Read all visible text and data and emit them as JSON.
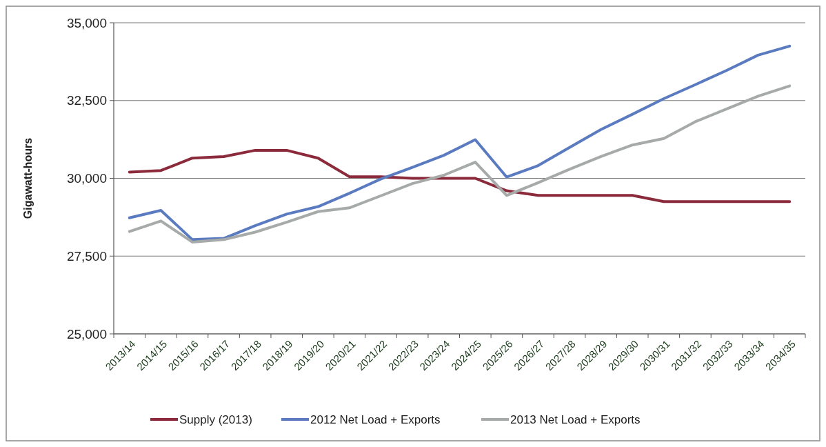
{
  "chart_data": {
    "type": "line",
    "ylabel": "Gigawatt-hours",
    "categories": [
      "2013/14",
      "2014/15",
      "2015/16",
      "2016/17",
      "2017/18",
      "2018/19",
      "2019/20",
      "2020/21",
      "2021/22",
      "2022/23",
      "2023/24",
      "2024/25",
      "2025/26",
      "2026/27",
      "2027/28",
      "2028/29",
      "2029/30",
      "2030/31",
      "2031/32",
      "2032/33",
      "2033/34",
      "2034/35"
    ],
    "series": [
      {
        "name": "Supply (2013)",
        "color": "#8b2a3a",
        "values": [
          30200,
          30250,
          30650,
          30700,
          30900,
          30900,
          30650,
          30050,
          30050,
          30000,
          30000,
          30000,
          29600,
          29450,
          29450,
          29450,
          29450,
          29250,
          29250,
          29250,
          29250,
          29250
        ]
      },
      {
        "name": "2012 Net Load + Exports",
        "color": "#5b7bc0",
        "values": [
          28730,
          28970,
          28030,
          28070,
          28480,
          28850,
          29090,
          29520,
          29980,
          30350,
          30740,
          31240,
          30040,
          30410,
          30990,
          31570,
          32060,
          32560,
          33010,
          33470,
          33960,
          34250
        ]
      },
      {
        "name": "2013 Net Load + Exports",
        "color": "#a6aaa8",
        "values": [
          28290,
          28630,
          27950,
          28030,
          28270,
          28590,
          28930,
          29050,
          29440,
          29830,
          30100,
          30520,
          29450,
          29860,
          30290,
          30700,
          31070,
          31280,
          31820,
          32230,
          32640,
          32970
        ]
      }
    ],
    "ylim": [
      25000,
      35000
    ],
    "yticks": [
      {
        "value": 25000,
        "label": "25,000"
      },
      {
        "value": 27500,
        "label": "27,500"
      },
      {
        "value": 30000,
        "label": "30,000"
      },
      {
        "value": 32500,
        "label": "32,500"
      },
      {
        "value": 35000,
        "label": "35,000"
      }
    ],
    "grid": "y",
    "legend": "bottom",
    "marker": "none",
    "line_style": "solid"
  }
}
